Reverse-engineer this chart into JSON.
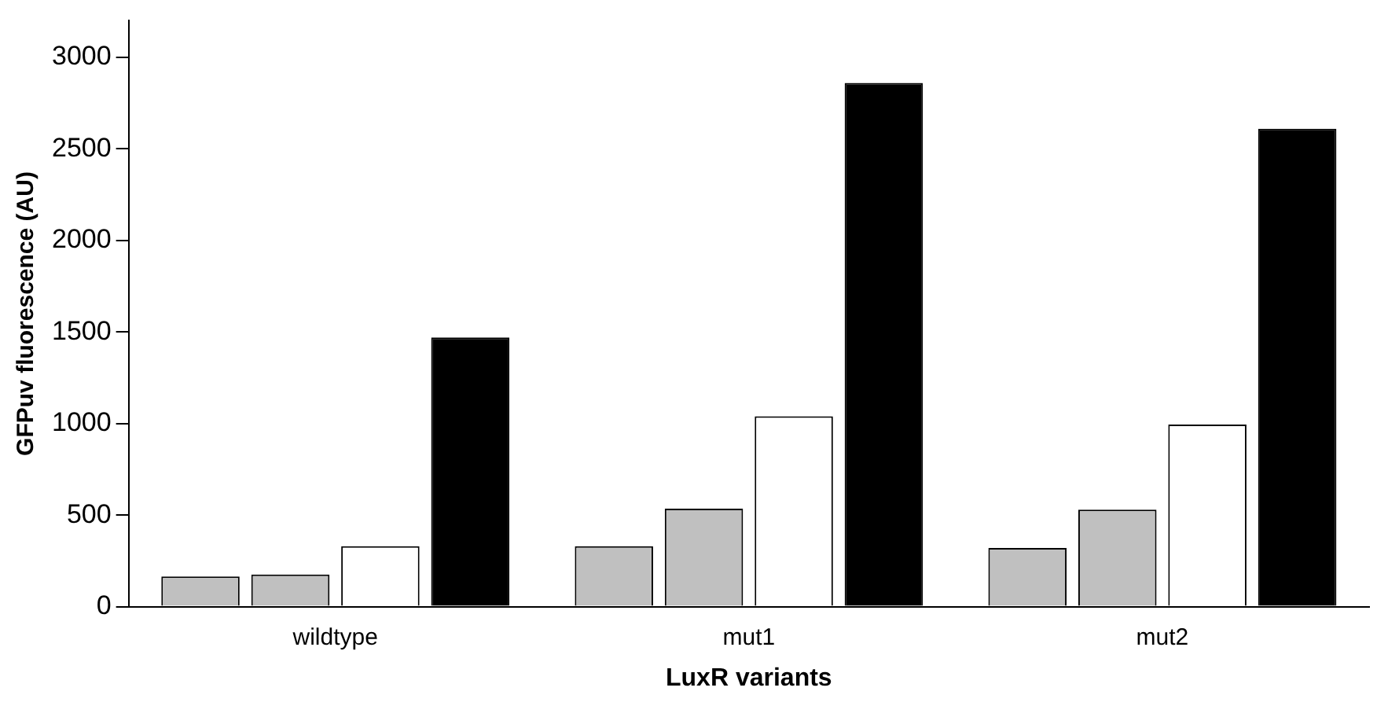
{
  "chart_data": {
    "type": "bar",
    "xlabel": "LuxR variants",
    "ylabel": "GFPuv fluorescence (AU)",
    "categories": [
      "wildtype",
      "mut1",
      "mut2"
    ],
    "series": [
      {
        "color": "#c0c0c0",
        "values": [
          165,
          330,
          320
        ]
      },
      {
        "color": "#c0c0c0",
        "values": [
          175,
          535,
          530
        ]
      },
      {
        "color": "#ffffff",
        "values": [
          330,
          1040,
          995
        ]
      },
      {
        "color": "#000000",
        "values": [
          1470,
          2860,
          2610
        ]
      }
    ],
    "ylim": [
      0,
      3200
    ],
    "yticks": [
      0,
      500,
      1000,
      1500,
      2000,
      2500,
      3000
    ],
    "grid": false,
    "legend": false
  }
}
